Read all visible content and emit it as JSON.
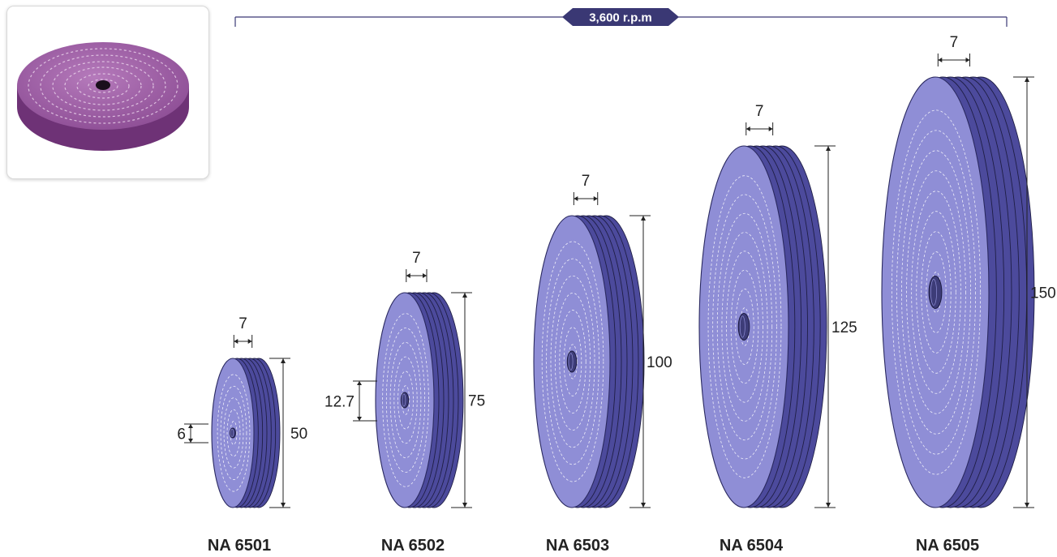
{
  "speed_label": "3,600 r.p.m",
  "wheels": [
    {
      "model": "NA 6501",
      "diameter": "50",
      "width": "7",
      "bore": "6"
    },
    {
      "model": "NA 6502",
      "diameter": "75",
      "width": "7",
      "bore": "12.7"
    },
    {
      "model": "NA 6503",
      "diameter": "100",
      "width": "7"
    },
    {
      "model": "NA 6504",
      "diameter": "125",
      "width": "7"
    },
    {
      "model": "NA 6505",
      "diameter": "150",
      "width": "7"
    }
  ],
  "colors": {
    "face": "#8f8ed6",
    "edge": "#4c4a9c",
    "stitch": "#ffffff",
    "badge": "#3a3874",
    "photo_wheel": "#9e5fa6"
  },
  "icons": {
    "product_photo": "buffing-wheel-photo"
  }
}
